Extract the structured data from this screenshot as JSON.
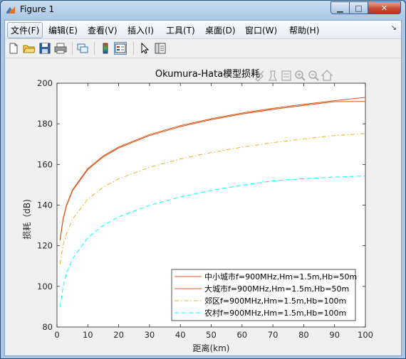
{
  "window": {
    "title": "Figure 1"
  },
  "menu": [
    {
      "label": "文件(F)"
    },
    {
      "label": "编辑(E)"
    },
    {
      "label": "查看(V)"
    },
    {
      "label": "插入(I)"
    },
    {
      "label": "工具(T)"
    },
    {
      "label": "桌面(D)"
    },
    {
      "label": "窗口(W)"
    },
    {
      "label": "帮助(H)"
    }
  ],
  "toolbar": [
    "new-figure",
    "open-file",
    "save",
    "print",
    "link",
    "colorbar",
    "legend-toggle",
    "pointer",
    "property-editor"
  ],
  "axes_toolbar": [
    "brush",
    "data-cursor",
    "legend-insert",
    "zoom-in",
    "zoom-out",
    "home"
  ],
  "colors": {
    "bigcity": "#d95319",
    "small": "#d95319",
    "suburb": "#edb120",
    "rural": "#00ffff"
  },
  "chart_data": {
    "type": "line",
    "title": "Okumura-Hata模型损耗",
    "xlabel": "距离(km)",
    "ylabel": "损耗（dB)",
    "xlim": [
      0,
      100
    ],
    "ylim": [
      80,
      200
    ],
    "xticks": [
      0,
      10,
      20,
      30,
      40,
      50,
      60,
      70,
      80,
      90,
      100
    ],
    "yticks": [
      80,
      100,
      120,
      140,
      160,
      180,
      200
    ],
    "grid": false,
    "legend_position": "bottom-right",
    "x": [
      1,
      2,
      3,
      5,
      10,
      15,
      20,
      30,
      40,
      50,
      60,
      70,
      80,
      90,
      100
    ],
    "series": [
      {
        "name": "中小城市f=900MHz,Hm=1.5m,Hb=50m",
        "style": "solid",
        "color": "#d95319",
        "values": [
          123.0,
          133.5,
          139.7,
          147.5,
          158.0,
          164.2,
          168.6,
          174.7,
          179.1,
          182.5,
          185.3,
          187.6,
          189.6,
          191.4,
          193.0
        ]
      },
      {
        "name": "大城市f=900MHz,Hm=1.5m,Hb=50m",
        "style": "solid",
        "color": "#d95319",
        "values": [
          122.5,
          133.0,
          139.2,
          147.0,
          157.5,
          163.7,
          168.1,
          174.2,
          178.6,
          182.0,
          184.8,
          187.1,
          189.1,
          190.9,
          191.0
        ]
      },
      {
        "name": "郊区f=900MHz,Hm=1.5m,Hb=100m",
        "style": "dashdot",
        "color": "#edb120",
        "values": [
          111.0,
          120.5,
          125.5,
          133.0,
          143.0,
          148.8,
          152.9,
          158.6,
          162.7,
          165.9,
          168.5,
          170.7,
          172.6,
          174.2,
          175.2
        ]
      },
      {
        "name": "农村f=900MHz,Hm=1.5m,Hb=100m",
        "style": "dashed",
        "color": "#00ffff",
        "values": [
          90.0,
          100.0,
          106.0,
          113.5,
          124.0,
          130.0,
          134.2,
          139.9,
          144.0,
          147.2,
          149.8,
          151.9,
          153.0,
          153.8,
          154.3
        ]
      }
    ]
  }
}
